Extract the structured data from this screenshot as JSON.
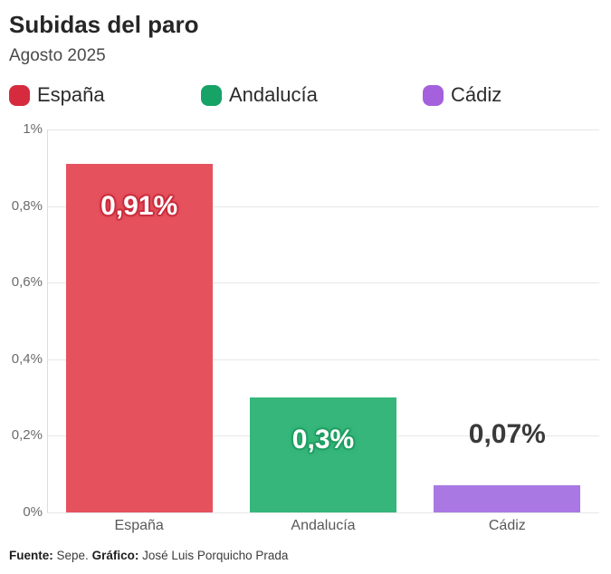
{
  "chart_data": {
    "type": "bar",
    "title": "Subidas del paro",
    "subtitle": "Agosto 2025",
    "categories": [
      "España",
      "Andalucía",
      "Cádiz"
    ],
    "values": [
      0.91,
      0.3,
      0.07
    ],
    "value_labels": [
      "0,91%",
      "0,3%",
      "0,07%"
    ],
    "bar_colors": [
      "#e5525e",
      "#36b67a",
      "#a978e3"
    ],
    "value_label_styles": [
      {
        "placement": "inside",
        "color": "#ffffff",
        "outline": "#cb2c3c"
      },
      {
        "placement": "inside",
        "color": "#ffffff",
        "outline": "#1e9e62"
      },
      {
        "placement": "above",
        "color": "#3a3a3a",
        "outline": null
      }
    ],
    "legend": [
      {
        "label": "España",
        "color": "#d62b3e"
      },
      {
        "label": "Andalucía",
        "color": "#17a266"
      },
      {
        "label": "Cádiz",
        "color": "#a560dd"
      }
    ],
    "legend_position": "top",
    "grid": true,
    "xlabel": "",
    "ylabel": "",
    "ylim": [
      0,
      1
    ],
    "yticks": [
      0,
      0.2,
      0.4,
      0.6,
      0.8,
      1
    ],
    "ytick_labels": [
      "0%",
      "0,2%",
      "0,4%",
      "0,6%",
      "0,8%",
      "1%"
    ]
  },
  "footer": {
    "source_label": "Fuente:",
    "source_text": "Sepe.",
    "credit_label": "Gráfico:",
    "credit_text": "José Luis Porquicho Prada"
  }
}
